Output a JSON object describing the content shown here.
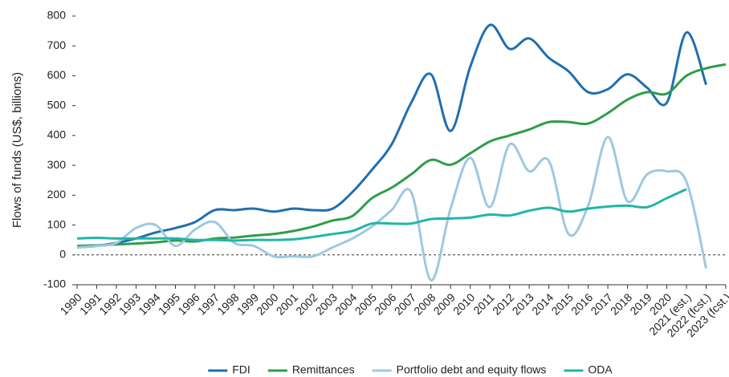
{
  "chart_data": {
    "type": "line",
    "y_label": "Flows of funds (US$, billions)",
    "categories": [
      "1990",
      "1991",
      "1992",
      "1993",
      "1994",
      "1995",
      "1996",
      "1997",
      "1998",
      "1999",
      "2000",
      "2001",
      "2002",
      "2003",
      "2004",
      "2005",
      "2006",
      "2007",
      "2008",
      "2009",
      "2010",
      "2011",
      "2012",
      "2013",
      "2014",
      "2015",
      "2016",
      "2017",
      "2018",
      "2019",
      "2020",
      "2021 (est.)",
      "2022 (fcst.)",
      "2023 (fcst.)"
    ],
    "series": [
      {
        "name": "FDI",
        "color": "#1f6fb2",
        "values": [
          25,
          30,
          40,
          55,
          75,
          90,
          110,
          150,
          150,
          155,
          145,
          155,
          150,
          155,
          210,
          285,
          370,
          510,
          605,
          415,
          630,
          770,
          690,
          725,
          660,
          615,
          545,
          555,
          605,
          560,
          510,
          745,
          570,
          null
        ]
      },
      {
        "name": "Remittances",
        "color": "#2e9e48",
        "values": [
          30,
          32,
          35,
          38,
          42,
          48,
          45,
          55,
          58,
          65,
          70,
          80,
          95,
          115,
          130,
          190,
          225,
          270,
          318,
          302,
          340,
          380,
          400,
          420,
          445,
          445,
          440,
          475,
          520,
          545,
          540,
          600,
          625,
          638
        ]
      },
      {
        "name": "Portfolio debt and equity flows",
        "color": "#9ec8e2",
        "values": [
          25,
          30,
          40,
          90,
          100,
          30,
          85,
          110,
          40,
          30,
          -5,
          -5,
          -5,
          25,
          55,
          95,
          150,
          210,
          -85,
          155,
          325,
          160,
          370,
          280,
          315,
          70,
          165,
          395,
          180,
          270,
          280,
          245,
          -45,
          null
        ]
      },
      {
        "name": "ODA",
        "color": "#22b5a8",
        "values": [
          55,
          57,
          55,
          55,
          55,
          55,
          50,
          50,
          48,
          50,
          50,
          52,
          60,
          70,
          80,
          105,
          105,
          105,
          120,
          122,
          125,
          135,
          132,
          148,
          158,
          145,
          155,
          162,
          165,
          160,
          190,
          220,
          null,
          null
        ]
      }
    ],
    "ylim": [
      -100,
      800
    ],
    "yticks": [
      -100,
      0,
      100,
      200,
      300,
      400,
      500,
      600,
      700,
      800
    ],
    "zero_line": true,
    "legend": "bottom"
  }
}
